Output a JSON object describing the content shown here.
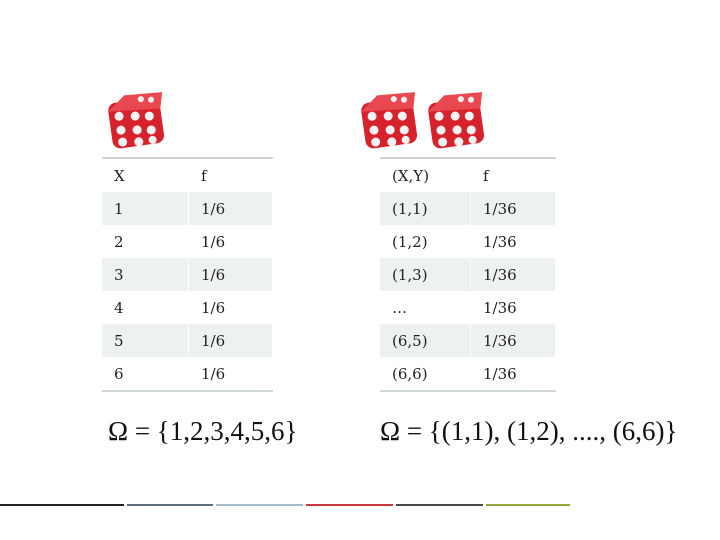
{
  "left_table": {
    "header": [
      "X",
      "f"
    ],
    "rows": [
      [
        "1",
        "1/6"
      ],
      [
        "2",
        "1/6"
      ],
      [
        "3",
        "1/6"
      ],
      [
        "4",
        "1/6"
      ],
      [
        "5",
        "1/6"
      ],
      [
        "6",
        "1/6"
      ]
    ]
  },
  "right_table": {
    "header": [
      "(X,Y)",
      "f"
    ],
    "rows": [
      [
        "(1,1)",
        "1/36"
      ],
      [
        "(1,2)",
        "1/36"
      ],
      [
        "(1,3)",
        "1/36"
      ],
      [
        "…",
        "1/36"
      ],
      [
        "(6,5)",
        "1/36"
      ],
      [
        "(6,6)",
        "1/36"
      ]
    ]
  },
  "formulas": [
    "Ω = {1,2,3,4,5,6}",
    "Ω = {(1,1), (1,2), ...., (6,6)}"
  ]
}
